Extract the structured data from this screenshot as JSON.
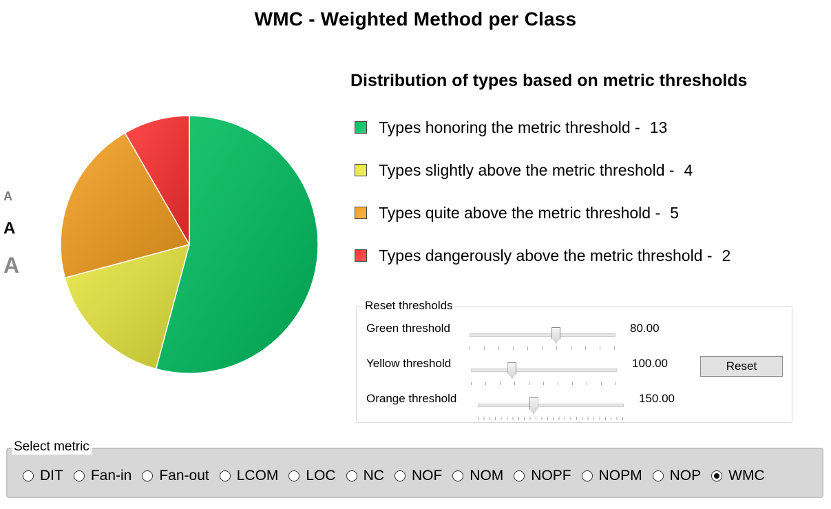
{
  "title": "WMC - Weighted Method per Class",
  "font_size_options": [
    "A",
    "A",
    "A"
  ],
  "chart_data": {
    "type": "pie",
    "title": "Distribution of types based on metric thresholds",
    "slices": [
      {
        "label": "Types honoring the metric threshold",
        "value": 13,
        "color": "#00c060"
      },
      {
        "label": "Types slightly above the metric threshold",
        "value": 4,
        "color": "#e8e840"
      },
      {
        "label": "Types quite above the metric threshold",
        "value": 5,
        "color": "#f5a020"
      },
      {
        "label": "Types dangerously above the metric threshold",
        "value": 2,
        "color": "#ff3030"
      }
    ],
    "legend_position": "right"
  },
  "legend_separator": " - ",
  "thresholds": {
    "group_label": "Reset thresholds",
    "rows": [
      {
        "label": "Green threshold",
        "value": "80.00",
        "fraction": 0.59
      },
      {
        "label": "Yellow threshold",
        "value": "100.00",
        "fraction": 0.28
      },
      {
        "label": "Orange threshold",
        "value": "150.00",
        "fraction": 0.38
      }
    ],
    "reset_label": "Reset"
  },
  "metrics": {
    "group_label": "Select metric",
    "options": [
      "DIT",
      "Fan-in",
      "Fan-out",
      "LCOM",
      "LOC",
      "NC",
      "NOF",
      "NOM",
      "NOPF",
      "NOPM",
      "NOP",
      "WMC"
    ],
    "selected": "WMC"
  }
}
